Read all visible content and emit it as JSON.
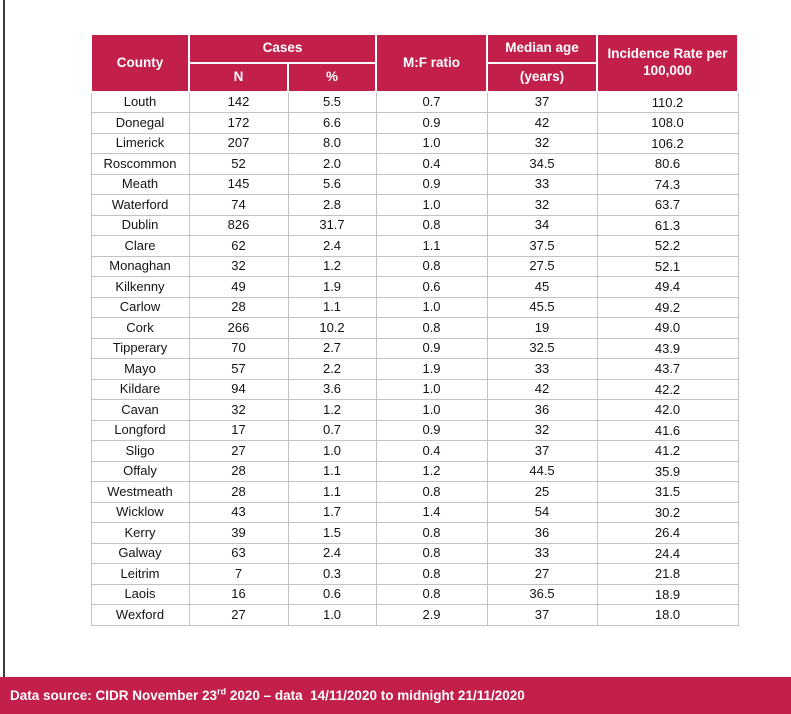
{
  "colors": {
    "accent": "#C21F4B",
    "header_text": "#FFFFFF",
    "header_divider": "#FFFFFF",
    "header_bottom_dark": "#1C1C1C",
    "header_bottom_pink": "#ECC4D0",
    "grid_line": "#C3C3C3",
    "page_edge_line": "#3C3C3C",
    "cell_text": "#141414"
  },
  "table": {
    "header": {
      "county": "County",
      "cases": "Cases",
      "n": "N",
      "pct": "%",
      "mf_ratio": "M:F ratio",
      "median_age": "Median age",
      "median_age_unit": "(years)",
      "incidence": "Incidence Rate per 100,000"
    },
    "columns": [
      "County",
      "Cases N",
      "Cases %",
      "M:F ratio",
      "Median age (years)",
      "Incidence Rate per 100,000"
    ],
    "rows": [
      [
        "Louth",
        "142",
        "5.5",
        "0.7",
        "37",
        "110.2"
      ],
      [
        "Donegal",
        "172",
        "6.6",
        "0.9",
        "42",
        "108.0"
      ],
      [
        "Limerick",
        "207",
        "8.0",
        "1.0",
        "32",
        "106.2"
      ],
      [
        "Roscommon",
        "52",
        "2.0",
        "0.4",
        "34.5",
        "80.6"
      ],
      [
        "Meath",
        "145",
        "5.6",
        "0.9",
        "33",
        "74.3"
      ],
      [
        "Waterford",
        "74",
        "2.8",
        "1.0",
        "32",
        "63.7"
      ],
      [
        "Dublin",
        "826",
        "31.7",
        "0.8",
        "34",
        "61.3"
      ],
      [
        "Clare",
        "62",
        "2.4",
        "1.1",
        "37.5",
        "52.2"
      ],
      [
        "Monaghan",
        "32",
        "1.2",
        "0.8",
        "27.5",
        "52.1"
      ],
      [
        "Kilkenny",
        "49",
        "1.9",
        "0.6",
        "45",
        "49.4"
      ],
      [
        "Carlow",
        "28",
        "1.1",
        "1.0",
        "45.5",
        "49.2"
      ],
      [
        "Cork",
        "266",
        "10.2",
        "0.8",
        "19",
        "49.0"
      ],
      [
        "Tipperary",
        "70",
        "2.7",
        "0.9",
        "32.5",
        "43.9"
      ],
      [
        "Mayo",
        "57",
        "2.2",
        "1.9",
        "33",
        "43.7"
      ],
      [
        "Kildare",
        "94",
        "3.6",
        "1.0",
        "42",
        "42.2"
      ],
      [
        "Cavan",
        "32",
        "1.2",
        "1.0",
        "36",
        "42.0"
      ],
      [
        "Longford",
        "17",
        "0.7",
        "0.9",
        "32",
        "41.6"
      ],
      [
        "Sligo",
        "27",
        "1.0",
        "0.4",
        "37",
        "41.2"
      ],
      [
        "Offaly",
        "28",
        "1.1",
        "1.2",
        "44.5",
        "35.9"
      ],
      [
        "Westmeath",
        "28",
        "1.1",
        "0.8",
        "25",
        "31.5"
      ],
      [
        "Wicklow",
        "43",
        "1.7",
        "1.4",
        "54",
        "30.2"
      ],
      [
        "Kerry",
        "39",
        "1.5",
        "0.8",
        "36",
        "26.4"
      ],
      [
        "Galway",
        "63",
        "2.4",
        "0.8",
        "33",
        "24.4"
      ],
      [
        "Leitrim",
        "7",
        "0.3",
        "0.8",
        "27",
        "21.8"
      ],
      [
        "Laois",
        "16",
        "0.6",
        "0.8",
        "36.5",
        "18.9"
      ],
      [
        "Wexford",
        "27",
        "1.0",
        "2.9",
        "37",
        "18.0"
      ]
    ]
  },
  "footer": {
    "prefix": "Data source: CIDR November 23",
    "superscript": "rd",
    "suffix": " 2020 – data  14/11/2020 to midnight 21/11/2020"
  }
}
